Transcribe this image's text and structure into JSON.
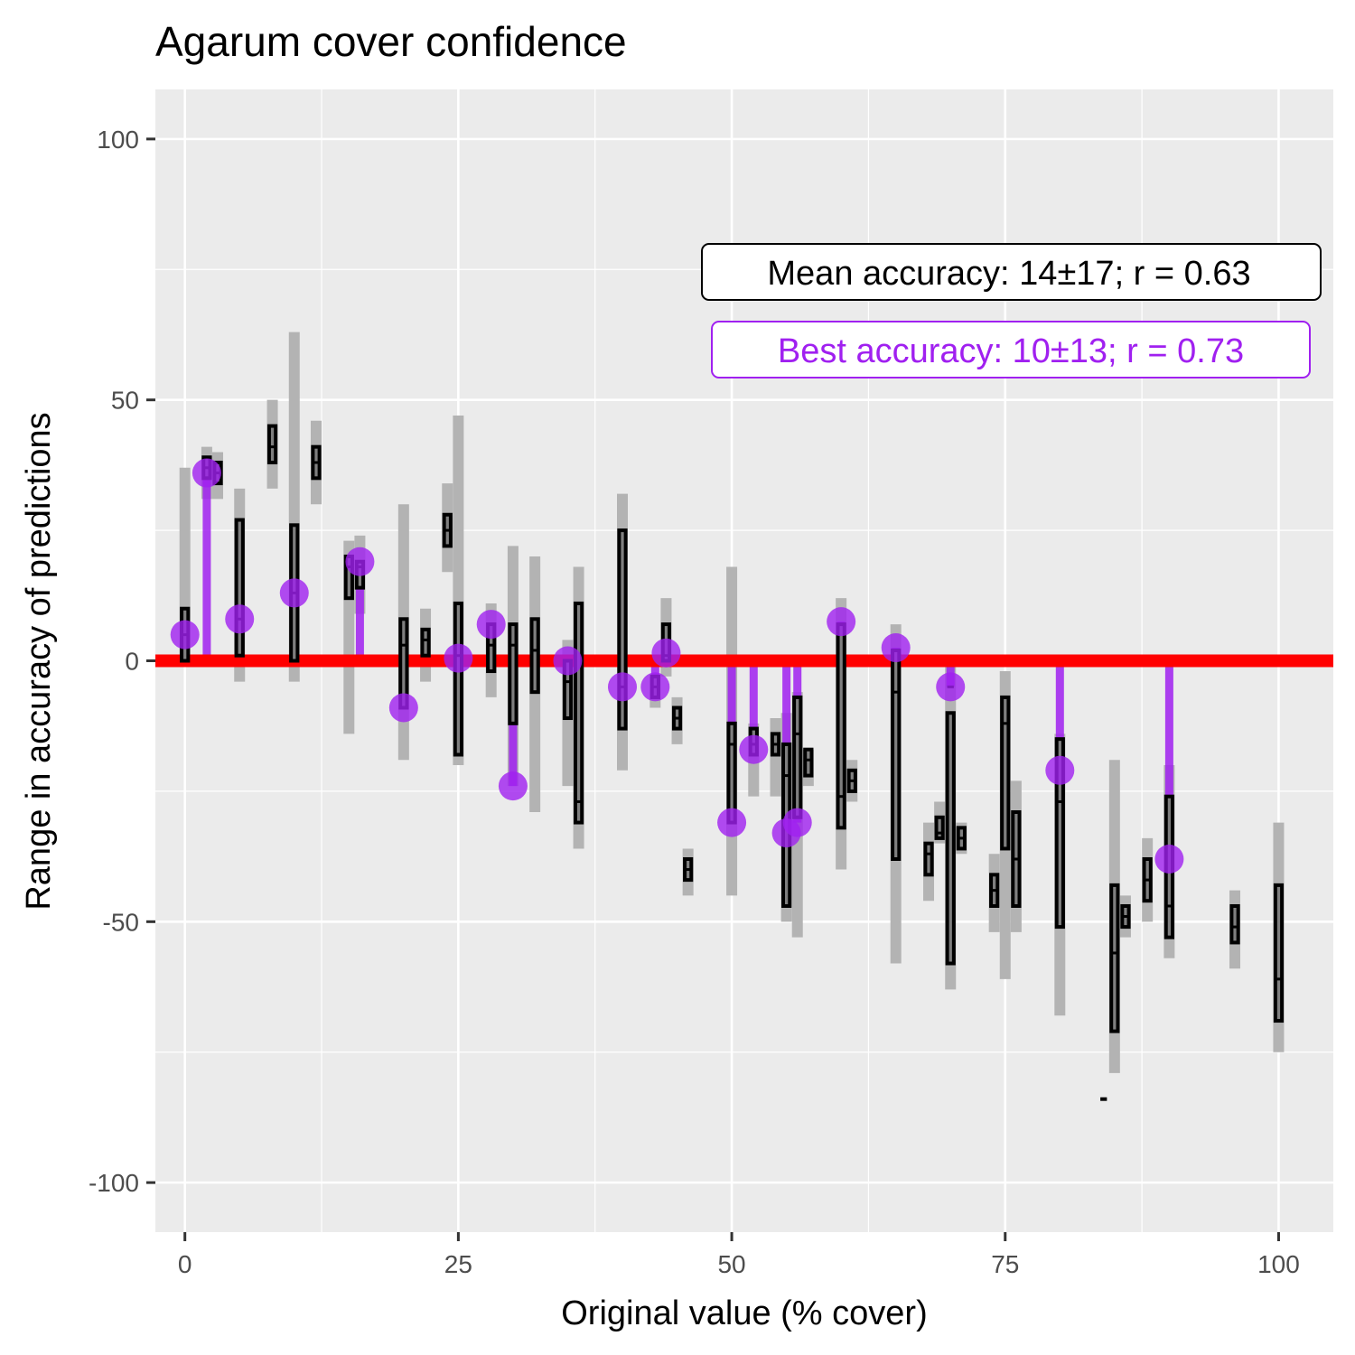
{
  "chart_data": {
    "type": "boxplot",
    "title": "Agarum cover confidence",
    "xlabel": "Original value (% cover)",
    "ylabel": "Range in accuracy of predictions",
    "xlim": [
      -2.7,
      105
    ],
    "ylim": [
      -109.5,
      109.5
    ],
    "x_ticks": [
      0,
      25,
      50,
      75,
      100
    ],
    "x_minor_ticks": [
      12.5,
      37.5,
      62.5,
      87.5
    ],
    "y_ticks": [
      100,
      50,
      0,
      -50,
      -100
    ],
    "y_minor_ticks": [
      75,
      25,
      -25,
      -75
    ],
    "grid": true,
    "reference_line": {
      "y": 0,
      "color": "#ff0000"
    },
    "colors": {
      "panel": "#ebebeb",
      "grid": "#ffffff",
      "range": "#b3b3b3",
      "box_fill": "#7f7f7f",
      "box_outline": "#000000",
      "best": "#a020f0"
    },
    "annotations": [
      {
        "text": "Mean accuracy: 14±17; r = 0.63",
        "color": "#000000"
      },
      {
        "text": "Best accuracy: 10±13; r = 0.73",
        "color": "#a020f0"
      }
    ],
    "series": [
      {
        "kind": "range",
        "points": [
          {
            "x": 0,
            "ymin": 0,
            "ymax": 37
          },
          {
            "x": 2,
            "ymin": 31,
            "ymax": 41
          },
          {
            "x": 3,
            "ymin": 31,
            "ymax": 40
          },
          {
            "x": 5,
            "ymin": -4,
            "ymax": 33
          },
          {
            "x": 8,
            "ymin": 33,
            "ymax": 50
          },
          {
            "x": 10,
            "ymin": -4,
            "ymax": 63
          },
          {
            "x": 12,
            "ymin": 30,
            "ymax": 46
          },
          {
            "x": 15,
            "ymin": -14,
            "ymax": 23
          },
          {
            "x": 16,
            "ymin": 9,
            "ymax": 24
          },
          {
            "x": 20,
            "ymin": -19,
            "ymax": 30
          },
          {
            "x": 22,
            "ymin": -4,
            "ymax": 10
          },
          {
            "x": 24,
            "ymin": 17,
            "ymax": 34
          },
          {
            "x": 25,
            "ymin": -20,
            "ymax": 47
          },
          {
            "x": 28,
            "ymin": -7,
            "ymax": 11
          },
          {
            "x": 30,
            "ymin": -24,
            "ymax": 22
          },
          {
            "x": 32,
            "ymin": -29,
            "ymax": 20
          },
          {
            "x": 35,
            "ymin": -24,
            "ymax": 4
          },
          {
            "x": 36,
            "ymin": -36,
            "ymax": 18
          },
          {
            "x": 40,
            "ymin": -21,
            "ymax": 32
          },
          {
            "x": 43,
            "ymin": -9,
            "ymax": -3
          },
          {
            "x": 44,
            "ymin": -3,
            "ymax": 12
          },
          {
            "x": 45,
            "ymin": -16,
            "ymax": -7
          },
          {
            "x": 46,
            "ymin": -45,
            "ymax": -36
          },
          {
            "x": 50,
            "ymin": -45,
            "ymax": 18
          },
          {
            "x": 52,
            "ymin": -26,
            "ymax": -12
          },
          {
            "x": 54,
            "ymin": -26,
            "ymax": -11
          },
          {
            "x": 55,
            "ymin": -50,
            "ymax": -10
          },
          {
            "x": 56,
            "ymin": -53,
            "ymax": -6
          },
          {
            "x": 57,
            "ymin": -24,
            "ymax": -17
          },
          {
            "x": 60,
            "ymin": -40,
            "ymax": 12
          },
          {
            "x": 61,
            "ymin": -27,
            "ymax": -19
          },
          {
            "x": 65,
            "ymin": -58,
            "ymax": 7
          },
          {
            "x": 68,
            "ymin": -46,
            "ymax": -31
          },
          {
            "x": 69,
            "ymin": -35,
            "ymax": -27
          },
          {
            "x": 70,
            "ymin": -63,
            "ymax": 1
          },
          {
            "x": 71,
            "ymin": -37,
            "ymax": -31
          },
          {
            "x": 74,
            "ymin": -52,
            "ymax": -37
          },
          {
            "x": 75,
            "ymin": -61,
            "ymax": -2
          },
          {
            "x": 76,
            "ymin": -52,
            "ymax": -23
          },
          {
            "x": 80,
            "ymin": -68,
            "ymax": -14
          },
          {
            "x": 84,
            "ymin": -84,
            "ymax": -84
          },
          {
            "x": 85,
            "ymin": -79,
            "ymax": -19
          },
          {
            "x": 86,
            "ymin": -53,
            "ymax": -45
          },
          {
            "x": 88,
            "ymin": -50,
            "ymax": -34
          },
          {
            "x": 90,
            "ymin": -57,
            "ymax": -20
          },
          {
            "x": 96,
            "ymin": -59,
            "ymax": -44
          },
          {
            "x": 100,
            "ymin": -75,
            "ymax": -31
          }
        ]
      },
      {
        "kind": "box",
        "points": [
          {
            "x": 0,
            "lower": 0,
            "middle": 5,
            "upper": 10
          },
          {
            "x": 2,
            "lower": 35,
            "middle": 37,
            "upper": 39
          },
          {
            "x": 3,
            "lower": 34,
            "middle": 36,
            "upper": 38
          },
          {
            "x": 5,
            "lower": 1,
            "middle": 8,
            "upper": 27
          },
          {
            "x": 8,
            "lower": 38,
            "middle": 41,
            "upper": 45
          },
          {
            "x": 10,
            "lower": 0,
            "middle": 13,
            "upper": 26
          },
          {
            "x": 12,
            "lower": 35,
            "middle": 38,
            "upper": 41
          },
          {
            "x": 15,
            "lower": 12,
            "middle": 18,
            "upper": 20
          },
          {
            "x": 16,
            "lower": 14,
            "middle": 18,
            "upper": 19
          },
          {
            "x": 20,
            "lower": -9,
            "middle": 3,
            "upper": 8
          },
          {
            "x": 22,
            "lower": 1,
            "middle": 4,
            "upper": 6
          },
          {
            "x": 24,
            "lower": 22,
            "middle": 25,
            "upper": 28
          },
          {
            "x": 25,
            "lower": -18,
            "middle": 1,
            "upper": 11
          },
          {
            "x": 28,
            "lower": -2,
            "middle": 3,
            "upper": 7
          },
          {
            "x": 30,
            "lower": -12,
            "middle": 3,
            "upper": 7
          },
          {
            "x": 32,
            "lower": -6,
            "middle": 2,
            "upper": 8
          },
          {
            "x": 35,
            "lower": -11,
            "middle": -4,
            "upper": 0
          },
          {
            "x": 36,
            "lower": -31,
            "middle": -27,
            "upper": 11
          },
          {
            "x": 40,
            "lower": -13,
            "middle": -5,
            "upper": 25
          },
          {
            "x": 43,
            "lower": -7,
            "middle": -5,
            "upper": -3
          },
          {
            "x": 44,
            "lower": 0,
            "middle": 1,
            "upper": 7
          },
          {
            "x": 45,
            "lower": -13,
            "middle": -11,
            "upper": -9
          },
          {
            "x": 46,
            "lower": -42,
            "middle": -40,
            "upper": -38
          },
          {
            "x": 50,
            "lower": -31,
            "middle": -16,
            "upper": -12
          },
          {
            "x": 52,
            "lower": -18,
            "middle": -16,
            "upper": -13
          },
          {
            "x": 54,
            "lower": -18,
            "middle": -16,
            "upper": -14
          },
          {
            "x": 55,
            "lower": -47,
            "middle": -22,
            "upper": -16
          },
          {
            "x": 56,
            "lower": -30,
            "middle": -14,
            "upper": -7
          },
          {
            "x": 57,
            "lower": -22,
            "middle": -19,
            "upper": -17
          },
          {
            "x": 60,
            "lower": -32,
            "middle": -26,
            "upper": 7
          },
          {
            "x": 61,
            "lower": -25,
            "middle": -23,
            "upper": -21
          },
          {
            "x": 65,
            "lower": -38,
            "middle": -6,
            "upper": 2
          },
          {
            "x": 68,
            "lower": -41,
            "middle": -37,
            "upper": -35
          },
          {
            "x": 69,
            "lower": -34,
            "middle": -33,
            "upper": -30
          },
          {
            "x": 70,
            "lower": -58,
            "middle": -5,
            "upper": -10
          },
          {
            "x": 71,
            "lower": -36,
            "middle": -34,
            "upper": -32
          },
          {
            "x": 74,
            "lower": -47,
            "middle": -44,
            "upper": -41
          },
          {
            "x": 75,
            "lower": -36,
            "middle": -12,
            "upper": -7
          },
          {
            "x": 76,
            "lower": -47,
            "middle": -38,
            "upper": -29
          },
          {
            "x": 80,
            "lower": -51,
            "middle": -27,
            "upper": -15
          },
          {
            "x": 84,
            "lower": -84,
            "middle": -84,
            "upper": -84
          },
          {
            "x": 85,
            "lower": -71,
            "middle": -56,
            "upper": -43
          },
          {
            "x": 86,
            "lower": -51,
            "middle": -49,
            "upper": -47
          },
          {
            "x": 88,
            "lower": -46,
            "middle": -42,
            "upper": -38
          },
          {
            "x": 90,
            "lower": -53,
            "middle": -47,
            "upper": -26
          },
          {
            "x": 96,
            "lower": -54,
            "middle": -51,
            "upper": -47
          },
          {
            "x": 100,
            "lower": -69,
            "middle": -61,
            "upper": -43
          }
        ]
      },
      {
        "kind": "best",
        "points": [
          {
            "x": 0,
            "y": 5
          },
          {
            "x": 2,
            "y": 36
          },
          {
            "x": 5,
            "y": 8
          },
          {
            "x": 10,
            "y": 13
          },
          {
            "x": 16,
            "y": 19
          },
          {
            "x": 20,
            "y": -9
          },
          {
            "x": 25,
            "y": 0.5
          },
          {
            "x": 28,
            "y": 7
          },
          {
            "x": 30,
            "y": -24
          },
          {
            "x": 35,
            "y": 0
          },
          {
            "x": 40,
            "y": -5
          },
          {
            "x": 43,
            "y": -5
          },
          {
            "x": 44,
            "y": 1.5
          },
          {
            "x": 50,
            "y": -31
          },
          {
            "x": 52,
            "y": -17
          },
          {
            "x": 55,
            "y": -33
          },
          {
            "x": 56,
            "y": -31
          },
          {
            "x": 60,
            "y": 7.5
          },
          {
            "x": 65,
            "y": 2.5
          },
          {
            "x": 70,
            "y": -5
          },
          {
            "x": 80,
            "y": -21
          },
          {
            "x": 90,
            "y": -38
          }
        ]
      }
    ]
  }
}
